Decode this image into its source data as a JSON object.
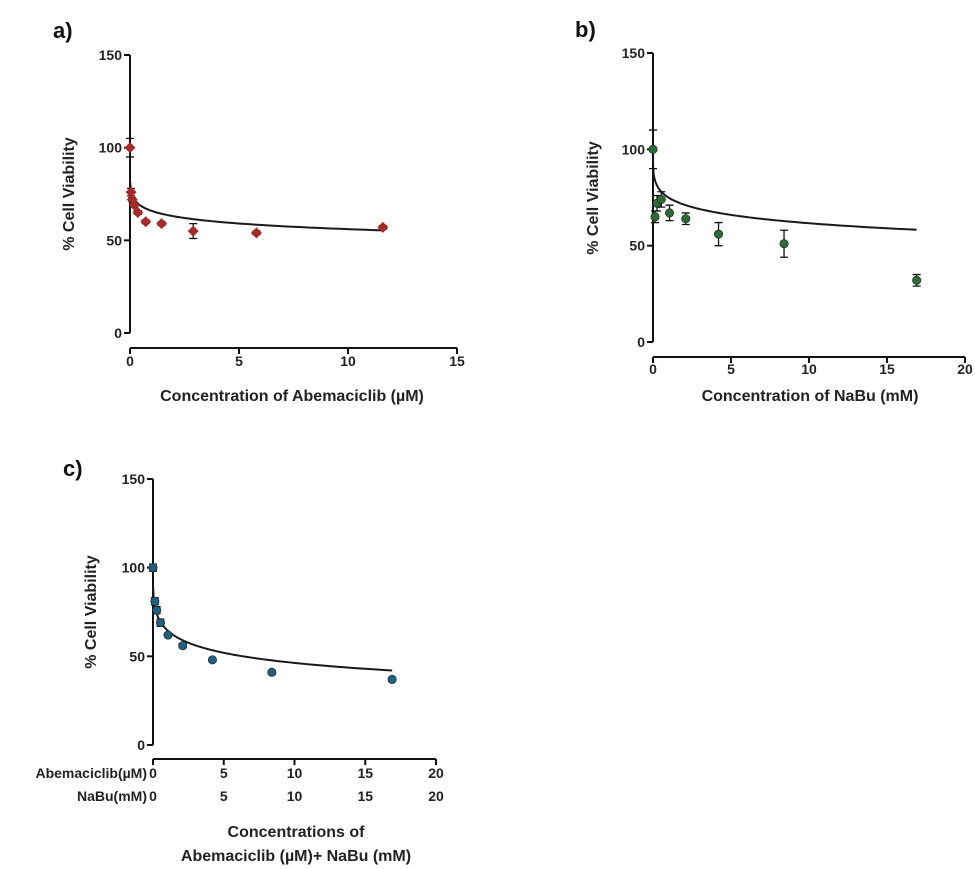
{
  "colors": {
    "a_marker": "#a52a2a",
    "b_marker": "#2e6b35",
    "c_marker": "#1f5f80",
    "curve": "#1a1a1a"
  },
  "chart_data": [
    {
      "panel": "a)",
      "type": "scatter",
      "marker": "diamond",
      "xlabel": "Concentration of Abemaciclib (µM)",
      "ylabel": "% Cell Viability",
      "xlim": [
        0,
        15
      ],
      "ylim": [
        0,
        150
      ],
      "xticks": [
        0,
        5,
        10,
        15
      ],
      "yticks": [
        0,
        50,
        100,
        150
      ],
      "points": [
        {
          "x": 0,
          "y": 100,
          "err": 5
        },
        {
          "x": 0.05,
          "y": 76,
          "err": 2
        },
        {
          "x": 0.1,
          "y": 72,
          "err": 1
        },
        {
          "x": 0.2,
          "y": 69,
          "err": 1
        },
        {
          "x": 0.36,
          "y": 65,
          "err": 1
        },
        {
          "x": 0.72,
          "y": 60,
          "err": 1
        },
        {
          "x": 1.45,
          "y": 59,
          "err": 1
        },
        {
          "x": 2.9,
          "y": 55,
          "err": 4
        },
        {
          "x": 5.8,
          "y": 54,
          "err": 1
        },
        {
          "x": 11.6,
          "y": 57,
          "err": 1
        }
      ],
      "fit": {
        "bottom": 0,
        "top": 100,
        "ic50": 38.5,
        "hill": 0.18,
        "xmin": 0.01,
        "xmax": 11.6
      }
    },
    {
      "panel": "b)",
      "type": "scatter",
      "marker": "circle",
      "xlabel": "Concentration of NaBu (mM)",
      "ylabel": "% Cell Viability",
      "xlim": [
        0,
        20
      ],
      "ylim": [
        0,
        150
      ],
      "xticks": [
        0,
        5,
        10,
        15,
        20
      ],
      "yticks": [
        0,
        50,
        100,
        150
      ],
      "points": [
        {
          "x": 0,
          "y": 100,
          "err": 10
        },
        {
          "x": 0.13,
          "y": 65,
          "err": 3
        },
        {
          "x": 0.26,
          "y": 72,
          "err": 4
        },
        {
          "x": 0.53,
          "y": 74,
          "err": 4
        },
        {
          "x": 1.06,
          "y": 67,
          "err": 4
        },
        {
          "x": 2.1,
          "y": 64,
          "err": 3
        },
        {
          "x": 4.2,
          "y": 56,
          "err": 6
        },
        {
          "x": 8.4,
          "y": 51,
          "err": 7
        },
        {
          "x": 16.9,
          "y": 32,
          "err": 3
        }
      ],
      "fit": {
        "bottom": 0,
        "top": 100,
        "ic50": 58,
        "hill": 0.27,
        "xmin": 0.01,
        "xmax": 16.9
      }
    },
    {
      "panel": "c)",
      "type": "scatter",
      "marker": "circle",
      "ylabel": "% Cell Viability",
      "xlabel_lines": [
        "Concentrations of",
        "Abemaciclib (µM)+ NaBu (mM)"
      ],
      "xlim": [
        0,
        20
      ],
      "ylim": [
        0,
        150
      ],
      "xticks": [
        0,
        5,
        10,
        15,
        20
      ],
      "yticks": [
        0,
        50,
        100,
        150
      ],
      "axis_rows": [
        {
          "label": "Abemaciclib(µM)",
          "ticks": [
            "0",
            "5",
            "10",
            "15",
            "20"
          ]
        },
        {
          "label": "NaBu(mM)",
          "ticks": [
            "0",
            "5",
            "10",
            "15",
            "20"
          ]
        }
      ],
      "points": [
        {
          "x": 0,
          "y": 100,
          "err": 2
        },
        {
          "x": 0.13,
          "y": 81,
          "err": 2
        },
        {
          "x": 0.26,
          "y": 76,
          "err": 2
        },
        {
          "x": 0.53,
          "y": 69,
          "err": 2
        },
        {
          "x": 1.06,
          "y": 62,
          "err": 1
        },
        {
          "x": 2.1,
          "y": 56,
          "err": 1
        },
        {
          "x": 4.2,
          "y": 48,
          "err": 1
        },
        {
          "x": 8.4,
          "y": 41,
          "err": 1
        },
        {
          "x": 16.9,
          "y": 37,
          "err": 1
        }
      ],
      "fit": {
        "bottom": 0,
        "top": 100,
        "ic50": 6.37,
        "hill": 0.33,
        "xmin": 0.01,
        "xmax": 16.9
      }
    }
  ]
}
